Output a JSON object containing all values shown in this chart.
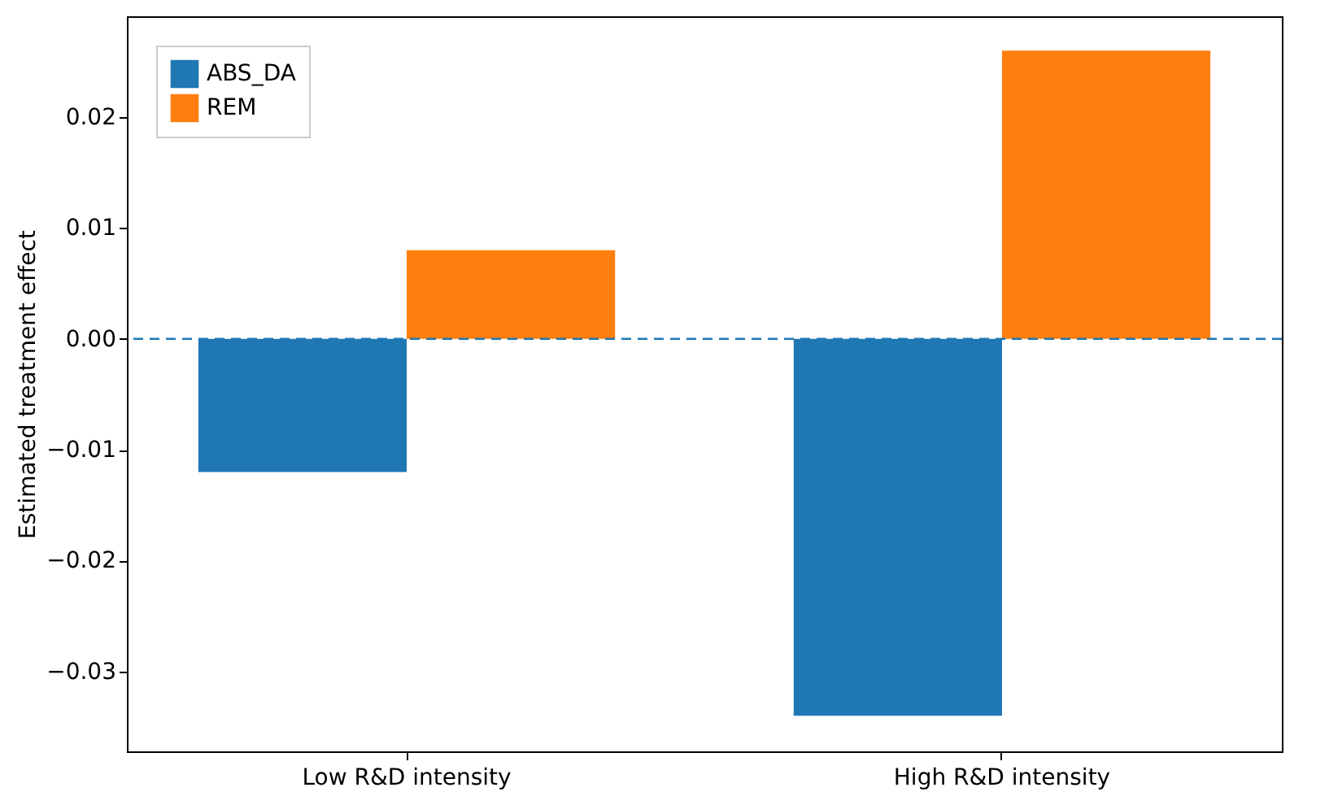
{
  "chart_data": {
    "type": "bar",
    "ylabel": "Estimated treatment effect",
    "categories": [
      "Low R&D intensity",
      "High R&D intensity"
    ],
    "series": [
      {
        "name": "ABS_DA",
        "color": "#1f77b4",
        "values": [
          -0.012,
          -0.034
        ]
      },
      {
        "name": "REM",
        "color": "#ff7f0e",
        "values": [
          0.008,
          0.026
        ]
      }
    ],
    "ylim": [
      -0.0372,
      0.0291
    ],
    "yticks": [
      {
        "value": -0.03,
        "label": "−0.03"
      },
      {
        "value": -0.02,
        "label": "−0.02"
      },
      {
        "value": -0.01,
        "label": "−0.01"
      },
      {
        "value": 0,
        "label": "0.00"
      },
      {
        "value": 0.01,
        "label": "0.01"
      },
      {
        "value": 0.02,
        "label": "0.02"
      }
    ],
    "ref_lines": [
      {
        "axis": "y",
        "value": 0,
        "color": "#1f77b4",
        "line_style": "dashed"
      }
    ],
    "legend": "top left",
    "grid": false
  }
}
